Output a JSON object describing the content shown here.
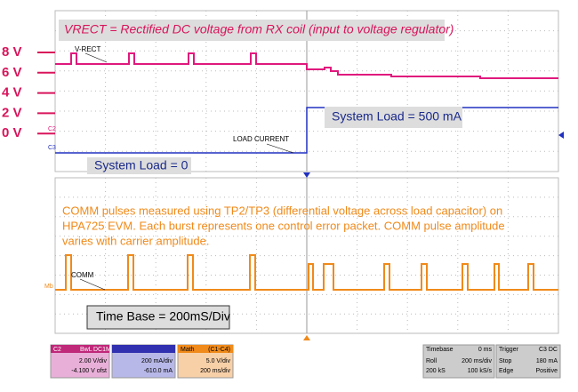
{
  "top_panel": {
    "title": "VRECT = Rectified DC voltage from RX coil (input to voltage regulator)",
    "trace_label": "V-RECT",
    "load_label": "LOAD CURRENT",
    "load_high": "System Load = 500 mA",
    "load_low": "System Load = 0",
    "ch2": "C2",
    "ch3": "C3",
    "axis_labels": [
      "8 V",
      "6 V",
      "4 V",
      "2 V",
      "0 V"
    ]
  },
  "bottom_panel": {
    "description": [
      "COMM pulses measured using TP2/TP3 (differential voltage across load capacitor) on",
      "HPA725 EVM.  Each burst represents one control error packet.  COMM pulse amplitude",
      "varies with carrier amplitude."
    ],
    "trace_label": "COMM",
    "math_marker": "Mb",
    "timebase_note": "Time Base = 200mS/Div"
  },
  "status_bar": {
    "c2": {
      "name": "C2",
      "tags": [
        "BwL",
        "DC1M"
      ],
      "scale": "2.00 V/div",
      "offset": "-4.100 V ofst"
    },
    "c3": {
      "scale": "200 mA/div",
      "offset": "-610.0 mA"
    },
    "math": {
      "name": "Math",
      "source": "(C1-C4)",
      "scale": "5.0 V/div",
      "time": "200 ms/div"
    },
    "timebase": {
      "name": "Timebase",
      "delay": "0 ms",
      "mode": "Roll",
      "scale": "200 ms/div",
      "samples": "200 kS",
      "rate": "100 kS/s"
    },
    "trigger": {
      "name": "Trigger",
      "source": "C3 DC",
      "state": "Stop",
      "level": "180 mA",
      "type": "Edge",
      "slope": "Positive"
    }
  }
}
